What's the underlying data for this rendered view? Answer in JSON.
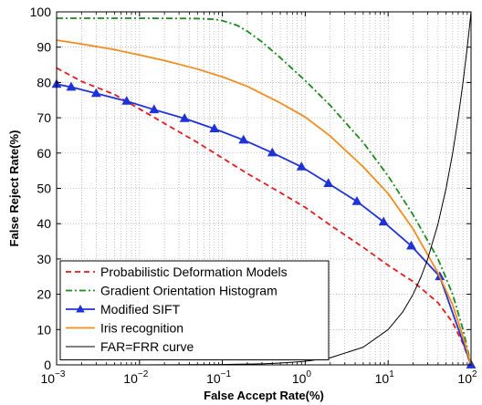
{
  "chart_data": {
    "type": "line",
    "xlabel": "False Accept Rate(%)",
    "ylabel": "False Reject Rate(%)",
    "x_scale": "log",
    "xlim": [
      0.001,
      100
    ],
    "ylim": [
      0,
      100
    ],
    "x_ticks": [
      {
        "value": 0.001,
        "base": "10",
        "exp": "−3"
      },
      {
        "value": 0.01,
        "base": "10",
        "exp": "−2"
      },
      {
        "value": 0.1,
        "base": "10",
        "exp": "−1"
      },
      {
        "value": 1,
        "base": "10",
        "exp": "0"
      },
      {
        "value": 10,
        "base": "10",
        "exp": "1"
      },
      {
        "value": 100,
        "base": "10",
        "exp": "2"
      }
    ],
    "y_ticks": [
      "0",
      "10",
      "20",
      "30",
      "40",
      "50",
      "60",
      "70",
      "80",
      "90",
      "100"
    ],
    "grid": true,
    "legend_position": "bottom-left",
    "series": [
      {
        "name": "Probabilistic Deformation Models",
        "color": "#e8191e",
        "style": "dashed",
        "marker": "none",
        "x": [
          0.001,
          0.002,
          0.005,
          0.01,
          0.02,
          0.05,
          0.1,
          0.2,
          0.5,
          1,
          2,
          5,
          10,
          20,
          40,
          60,
          80,
          100
        ],
        "y": [
          84.1,
          80.3,
          76.6,
          72.5,
          68.4,
          63.0,
          58.6,
          54.2,
          48.8,
          44.6,
          39.6,
          33.3,
          28.2,
          23.6,
          17.6,
          12.0,
          6.0,
          0
        ]
      },
      {
        "name": "Gradient Orientation Histogram",
        "color": "#1b8a1b",
        "style": "dashdot",
        "marker": "none",
        "x": [
          0.001,
          0.01,
          0.05,
          0.08,
          0.1,
          0.15,
          0.2,
          0.3,
          0.5,
          1,
          2,
          5,
          10,
          20,
          40,
          60,
          80,
          100
        ],
        "y": [
          98.2,
          98.2,
          98.1,
          97.9,
          97.5,
          96.2,
          94.5,
          91.5,
          87.0,
          80.5,
          73.5,
          63.0,
          53.5,
          42.5,
          30.0,
          20.0,
          10.0,
          0
        ]
      },
      {
        "name": "Modified SIFT",
        "color": "#1f32d8",
        "style": "solid",
        "marker": "triangle",
        "x": [
          0.001,
          0.0015,
          0.003,
          0.007,
          0.015,
          0.035,
          0.08,
          0.18,
          0.4,
          0.9,
          1.9,
          4.2,
          8.8,
          19,
          42,
          100
        ],
        "y": [
          79.5,
          78.7,
          76.9,
          74.7,
          72.3,
          69.8,
          66.9,
          63.7,
          60.1,
          56.1,
          51.4,
          46.3,
          40.5,
          33.7,
          25.0,
          0
        ]
      },
      {
        "name": "Iris recognition",
        "color": "#f28c1d",
        "style": "solid",
        "marker": "none",
        "x": [
          0.001,
          0.002,
          0.005,
          0.01,
          0.02,
          0.05,
          0.1,
          0.2,
          0.5,
          1,
          2,
          5,
          10,
          20,
          40,
          60,
          80,
          100
        ],
        "y": [
          92.0,
          90.9,
          89.3,
          87.8,
          86.2,
          83.8,
          81.6,
          78.9,
          74.2,
          70.2,
          64.8,
          56.1,
          48.5,
          38.5,
          26.0,
          17.0,
          8.0,
          0
        ]
      },
      {
        "name": "FAR=FRR curve",
        "color": "#000000",
        "style": "solid",
        "marker": "none",
        "x": [
          0.001,
          0.01,
          0.1,
          0.3,
          0.5,
          1,
          2,
          5,
          10,
          15,
          20,
          25,
          30,
          40,
          50,
          60,
          70,
          80,
          90,
          95,
          98,
          100
        ],
        "y": [
          0,
          0.01,
          0.1,
          0.3,
          0.5,
          1,
          2,
          5,
          10,
          15,
          20,
          25,
          30,
          40,
          50,
          60,
          70,
          80,
          90,
          95,
          98,
          100
        ]
      }
    ]
  }
}
